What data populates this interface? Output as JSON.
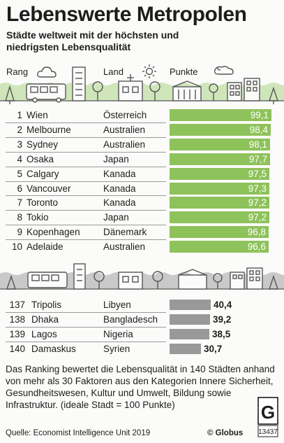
{
  "title": "Lebenswerte Metropolen",
  "subtitle": "Städte weltweit mit der höchsten und niedrigsten Lebensqualität",
  "headers": {
    "rank": "Rang",
    "country": "Land",
    "points": "Punkte"
  },
  "colors": {
    "top_bar": "#8ec25a",
    "top_value_text": "#ffffff",
    "bottom_bar": "#999999",
    "bottom_value_text": "#1d1d1b",
    "band": "#cfe6bb",
    "band_grey": "#c9c9c9",
    "icon_stroke": "#555555"
  },
  "chart_data": {
    "type": "bar",
    "orientation": "horizontal",
    "title": "Lebenswerte Metropolen",
    "subtitle": "Städte weltweit mit der höchsten und niedrigsten Lebensqualität",
    "xlim": [
      0,
      100
    ],
    "top": [
      {
        "rank": "1",
        "city": "Wien",
        "country": "Österreich",
        "value": 99.1,
        "label": "99,1"
      },
      {
        "rank": "2",
        "city": "Melbourne",
        "country": "Australien",
        "value": 98.4,
        "label": "98,4"
      },
      {
        "rank": "3",
        "city": "Sydney",
        "country": "Australien",
        "value": 98.1,
        "label": "98,1"
      },
      {
        "rank": "4",
        "city": "Osaka",
        "country": "Japan",
        "value": 97.7,
        "label": "97,7"
      },
      {
        "rank": "5",
        "city": "Calgary",
        "country": "Kanada",
        "value": 97.5,
        "label": "97,5"
      },
      {
        "rank": "6",
        "city": "Vancouver",
        "country": "Kanada",
        "value": 97.3,
        "label": "97,3"
      },
      {
        "rank": "7",
        "city": "Toronto",
        "country": "Kanada",
        "value": 97.2,
        "label": "97,2"
      },
      {
        "rank": "8",
        "city": "Tokio",
        "country": "Japan",
        "value": 97.2,
        "label": "97,2"
      },
      {
        "rank": "9",
        "city": "Kopenhagen",
        "country": "Dänemark",
        "value": 96.8,
        "label": "96,8"
      },
      {
        "rank": "10",
        "city": "Adelaide",
        "country": "Australien",
        "value": 96.6,
        "label": "96,6"
      }
    ],
    "bottom": [
      {
        "rank": "137",
        "city": "Tripolis",
        "country": "Libyen",
        "value": 40.4,
        "label": "40,4"
      },
      {
        "rank": "138",
        "city": "Dhaka",
        "country": "Bangladesch",
        "value": 39.2,
        "label": "39,2"
      },
      {
        "rank": "139",
        "city": "Lagos",
        "country": "Nigeria",
        "value": 38.5,
        "label": "38,5"
      },
      {
        "rank": "140",
        "city": "Damaskus",
        "country": "Syrien",
        "value": 30.7,
        "label": "30,7"
      }
    ]
  },
  "note": "Das Ranking bewertet die Lebensqualität in 140 Städten anhand von mehr als 30 Faktoren aus den Kategorien Innere Sicherheit, Gesundheitswesen, Kultur und Umwelt, Bildung sowie Infrastruktur. (ideale Stadt = 100 Punkte)",
  "source": "Quelle: Economist Intelligence Unit 2019",
  "copyright": "© Globus",
  "logo": {
    "letter": "G",
    "number": "13437"
  }
}
